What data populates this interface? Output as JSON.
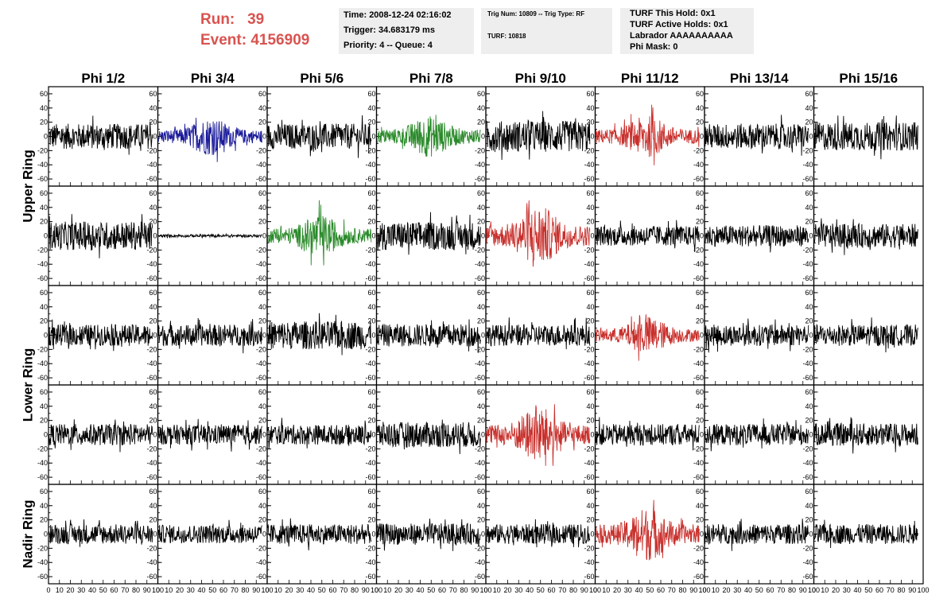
{
  "header": {
    "run_label": "Run:",
    "run_value": "39",
    "event_label": "Event:",
    "event_value": "4156909"
  },
  "time_box": {
    "time": "Time: 2008-12-24 02:16:02",
    "trigger": "Trigger: 34.683179 ms",
    "priority": "Priority: 4 -- Queue: 4"
  },
  "trig_box": {
    "trig": "Trig Num: 10809 -- Trig Type: RF",
    "turf": "TURF: 10818"
  },
  "turf_box": {
    "hold": "TURF This Hold: 0x1",
    "active": "TURF Active Holds: 0x1",
    "labrador": "Labrador AAAAAAAAAA",
    "phimask": "Phi Mask: 0"
  },
  "chart_data": {
    "type": "line",
    "columns": [
      "Phi 1/2",
      "Phi 3/4",
      "Phi 5/6",
      "Phi 7/8",
      "Phi 9/10",
      "Phi 11/12",
      "Phi 13/14",
      "Phi 15/16"
    ],
    "rows": [
      "Upper Ring",
      "Upper Ring",
      "Lower Ring",
      "Lower Ring",
      "Nadir Ring"
    ],
    "row_labels": [
      {
        "text": "Upper Ring",
        "spans": [
          0,
          1
        ]
      },
      {
        "text": "Lower Ring",
        "spans": [
          2,
          3
        ]
      },
      {
        "text": "Nadir Ring",
        "spans": [
          4,
          4
        ]
      }
    ],
    "xlim": [
      0,
      100
    ],
    "ylim": [
      -70,
      70
    ],
    "x_ticks": [
      "0",
      "10",
      "20",
      "30",
      "40",
      "50",
      "60",
      "70",
      "80",
      "90",
      "100"
    ],
    "y_ticks": [
      "60",
      "40",
      "20",
      "0",
      "-20",
      "-40",
      "-60"
    ],
    "colors": {
      "default": "#000000",
      "blue": "#1a1a9a",
      "green": "#2a8a2a",
      "red": "#c8302c"
    },
    "panels": [
      [
        "default",
        "blue",
        "default",
        "green",
        "default",
        "red",
        "default",
        "default"
      ],
      [
        "default",
        "flat",
        "green",
        "default",
        "red",
        "default",
        "default",
        "default"
      ],
      [
        "default",
        "default",
        "default",
        "default",
        "default",
        "red",
        "default",
        "default"
      ],
      [
        "default",
        "default",
        "default",
        "default",
        "red",
        "default",
        "default",
        "default"
      ],
      [
        "default",
        "default",
        "default",
        "default",
        "default",
        "red",
        "default",
        "default"
      ]
    ],
    "amplitudes": [
      [
        18,
        20,
        18,
        22,
        22,
        22,
        18,
        20
      ],
      [
        20,
        2,
        22,
        20,
        32,
        14,
        15,
        17
      ],
      [
        15,
        15,
        20,
        16,
        15,
        20,
        15,
        15
      ],
      [
        15,
        14,
        14,
        18,
        30,
        15,
        15,
        16
      ],
      [
        14,
        13,
        14,
        15,
        14,
        28,
        14,
        14
      ]
    ]
  }
}
